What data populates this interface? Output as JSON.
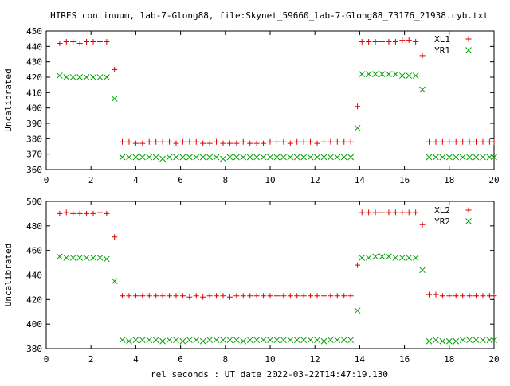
{
  "title": "HIRES continuum, lab-7-Glong88, file:Skynet_59660_lab-7-Glong88_73176_21938.cyb.txt",
  "xlabel": "rel seconds : UT date 2022-03-22T14:47:19.130",
  "chart_data": [
    {
      "type": "scatter",
      "ylabel": "Uncalibrated",
      "xlim": [
        0,
        20
      ],
      "ylim": [
        360,
        450
      ],
      "x_ticks": [
        0,
        2,
        4,
        6,
        8,
        10,
        12,
        14,
        16,
        18,
        20
      ],
      "y_ticks": [
        360,
        370,
        380,
        390,
        400,
        410,
        420,
        430,
        440,
        450
      ],
      "legend_position": "top-right",
      "grid": false,
      "series": [
        {
          "name": "XL1",
          "marker": "plus",
          "color": "#e00000",
          "points": [
            [
              0.6,
              442
            ],
            [
              0.9,
              443
            ],
            [
              1.2,
              443
            ],
            [
              1.5,
              442
            ],
            [
              1.8,
              443
            ],
            [
              2.1,
              443
            ],
            [
              2.4,
              443
            ],
            [
              2.7,
              443
            ],
            [
              3.05,
              425
            ],
            [
              3.4,
              378
            ],
            [
              3.7,
              378
            ],
            [
              4.0,
              377
            ],
            [
              4.3,
              377
            ],
            [
              4.6,
              378
            ],
            [
              4.9,
              378
            ],
            [
              5.2,
              378
            ],
            [
              5.5,
              378
            ],
            [
              5.8,
              377
            ],
            [
              6.1,
              378
            ],
            [
              6.4,
              378
            ],
            [
              6.7,
              378
            ],
            [
              7.0,
              377
            ],
            [
              7.3,
              377
            ],
            [
              7.6,
              378
            ],
            [
              7.9,
              377
            ],
            [
              8.2,
              377
            ],
            [
              8.5,
              377
            ],
            [
              8.8,
              378
            ],
            [
              9.1,
              377
            ],
            [
              9.4,
              377
            ],
            [
              9.7,
              377
            ],
            [
              10.0,
              378
            ],
            [
              10.3,
              378
            ],
            [
              10.6,
              378
            ],
            [
              10.9,
              377
            ],
            [
              11.2,
              378
            ],
            [
              11.5,
              378
            ],
            [
              11.8,
              378
            ],
            [
              12.1,
              377
            ],
            [
              12.4,
              378
            ],
            [
              12.7,
              378
            ],
            [
              13.0,
              378
            ],
            [
              13.3,
              378
            ],
            [
              13.6,
              378
            ],
            [
              13.9,
              401
            ],
            [
              14.1,
              443
            ],
            [
              14.4,
              443
            ],
            [
              14.7,
              443
            ],
            [
              15.0,
              443
            ],
            [
              15.3,
              443
            ],
            [
              15.6,
              443
            ],
            [
              15.9,
              444
            ],
            [
              16.2,
              444
            ],
            [
              16.5,
              443
            ],
            [
              16.8,
              434
            ],
            [
              17.1,
              378
            ],
            [
              17.4,
              378
            ],
            [
              17.7,
              378
            ],
            [
              18.0,
              378
            ],
            [
              18.3,
              378
            ],
            [
              18.6,
              378
            ],
            [
              18.9,
              378
            ],
            [
              19.2,
              378
            ],
            [
              19.5,
              378
            ],
            [
              19.8,
              378
            ],
            [
              20.0,
              378
            ]
          ]
        },
        {
          "name": "YR1",
          "marker": "x",
          "color": "#00a000",
          "points": [
            [
              0.6,
              421
            ],
            [
              0.9,
              420
            ],
            [
              1.2,
              420
            ],
            [
              1.5,
              420
            ],
            [
              1.8,
              420
            ],
            [
              2.1,
              420
            ],
            [
              2.4,
              420
            ],
            [
              2.7,
              420
            ],
            [
              3.05,
              406
            ],
            [
              3.4,
              368
            ],
            [
              3.7,
              368
            ],
            [
              4.0,
              368
            ],
            [
              4.3,
              368
            ],
            [
              4.6,
              368
            ],
            [
              4.9,
              368
            ],
            [
              5.2,
              367
            ],
            [
              5.5,
              368
            ],
            [
              5.8,
              368
            ],
            [
              6.1,
              368
            ],
            [
              6.4,
              368
            ],
            [
              6.7,
              368
            ],
            [
              7.0,
              368
            ],
            [
              7.3,
              368
            ],
            [
              7.6,
              368
            ],
            [
              7.9,
              367
            ],
            [
              8.2,
              368
            ],
            [
              8.5,
              368
            ],
            [
              8.8,
              368
            ],
            [
              9.1,
              368
            ],
            [
              9.4,
              368
            ],
            [
              9.7,
              368
            ],
            [
              10.0,
              368
            ],
            [
              10.3,
              368
            ],
            [
              10.6,
              368
            ],
            [
              10.9,
              368
            ],
            [
              11.2,
              368
            ],
            [
              11.5,
              368
            ],
            [
              11.8,
              368
            ],
            [
              12.1,
              368
            ],
            [
              12.4,
              368
            ],
            [
              12.7,
              368
            ],
            [
              13.0,
              368
            ],
            [
              13.3,
              368
            ],
            [
              13.6,
              368
            ],
            [
              13.9,
              387
            ],
            [
              14.1,
              422
            ],
            [
              14.4,
              422
            ],
            [
              14.7,
              422
            ],
            [
              15.0,
              422
            ],
            [
              15.3,
              422
            ],
            [
              15.6,
              422
            ],
            [
              15.9,
              421
            ],
            [
              16.2,
              421
            ],
            [
              16.5,
              421
            ],
            [
              16.8,
              412
            ],
            [
              17.1,
              368
            ],
            [
              17.4,
              368
            ],
            [
              17.7,
              368
            ],
            [
              18.0,
              368
            ],
            [
              18.3,
              368
            ],
            [
              18.6,
              368
            ],
            [
              18.9,
              368
            ],
            [
              19.2,
              368
            ],
            [
              19.5,
              368
            ],
            [
              19.8,
              368
            ],
            [
              20.0,
              368
            ]
          ]
        }
      ]
    },
    {
      "type": "scatter",
      "ylabel": "Uncalibrated",
      "xlim": [
        0,
        20
      ],
      "ylim": [
        380,
        500
      ],
      "x_ticks": [
        0,
        2,
        4,
        6,
        8,
        10,
        12,
        14,
        16,
        18,
        20
      ],
      "y_ticks": [
        380,
        400,
        420,
        440,
        460,
        480,
        500
      ],
      "legend_position": "top-right",
      "grid": false,
      "series": [
        {
          "name": "XL2",
          "marker": "plus",
          "color": "#e00000",
          "points": [
            [
              0.6,
              490
            ],
            [
              0.9,
              491
            ],
            [
              1.2,
              490
            ],
            [
              1.5,
              490
            ],
            [
              1.8,
              490
            ],
            [
              2.1,
              490
            ],
            [
              2.4,
              491
            ],
            [
              2.7,
              490
            ],
            [
              3.05,
              471
            ],
            [
              3.4,
              423
            ],
            [
              3.7,
              423
            ],
            [
              4.0,
              423
            ],
            [
              4.3,
              423
            ],
            [
              4.6,
              423
            ],
            [
              4.9,
              423
            ],
            [
              5.2,
              423
            ],
            [
              5.5,
              423
            ],
            [
              5.8,
              423
            ],
            [
              6.1,
              423
            ],
            [
              6.4,
              422
            ],
            [
              6.7,
              423
            ],
            [
              7.0,
              422
            ],
            [
              7.3,
              423
            ],
            [
              7.6,
              423
            ],
            [
              7.9,
              423
            ],
            [
              8.2,
              422
            ],
            [
              8.5,
              423
            ],
            [
              8.8,
              423
            ],
            [
              9.1,
              423
            ],
            [
              9.4,
              423
            ],
            [
              9.7,
              423
            ],
            [
              10.0,
              423
            ],
            [
              10.3,
              423
            ],
            [
              10.6,
              423
            ],
            [
              10.9,
              423
            ],
            [
              11.2,
              423
            ],
            [
              11.5,
              423
            ],
            [
              11.8,
              423
            ],
            [
              12.1,
              423
            ],
            [
              12.4,
              423
            ],
            [
              12.7,
              423
            ],
            [
              13.0,
              423
            ],
            [
              13.3,
              423
            ],
            [
              13.6,
              423
            ],
            [
              13.9,
              448
            ],
            [
              14.1,
              491
            ],
            [
              14.4,
              491
            ],
            [
              14.7,
              491
            ],
            [
              15.0,
              491
            ],
            [
              15.3,
              491
            ],
            [
              15.6,
              491
            ],
            [
              15.9,
              491
            ],
            [
              16.2,
              491
            ],
            [
              16.5,
              491
            ],
            [
              16.8,
              481
            ],
            [
              17.1,
              424
            ],
            [
              17.4,
              424
            ],
            [
              17.7,
              423
            ],
            [
              18.0,
              423
            ],
            [
              18.3,
              423
            ],
            [
              18.6,
              423
            ],
            [
              18.9,
              423
            ],
            [
              19.2,
              423
            ],
            [
              19.5,
              423
            ],
            [
              19.8,
              423
            ],
            [
              20.0,
              423
            ]
          ]
        },
        {
          "name": "YR2",
          "marker": "x",
          "color": "#00a000",
          "points": [
            [
              0.6,
              455
            ],
            [
              0.9,
              454
            ],
            [
              1.2,
              454
            ],
            [
              1.5,
              454
            ],
            [
              1.8,
              454
            ],
            [
              2.1,
              454
            ],
            [
              2.4,
              454
            ],
            [
              2.7,
              453
            ],
            [
              3.05,
              435
            ],
            [
              3.4,
              387
            ],
            [
              3.7,
              386
            ],
            [
              4.0,
              387
            ],
            [
              4.3,
              387
            ],
            [
              4.6,
              387
            ],
            [
              4.9,
              387
            ],
            [
              5.2,
              386
            ],
            [
              5.5,
              387
            ],
            [
              5.8,
              387
            ],
            [
              6.1,
              386
            ],
            [
              6.4,
              387
            ],
            [
              6.7,
              387
            ],
            [
              7.0,
              386
            ],
            [
              7.3,
              387
            ],
            [
              7.6,
              387
            ],
            [
              7.9,
              387
            ],
            [
              8.2,
              387
            ],
            [
              8.5,
              387
            ],
            [
              8.8,
              386
            ],
            [
              9.1,
              387
            ],
            [
              9.4,
              387
            ],
            [
              9.7,
              387
            ],
            [
              10.0,
              387
            ],
            [
              10.3,
              387
            ],
            [
              10.6,
              387
            ],
            [
              10.9,
              387
            ],
            [
              11.2,
              387
            ],
            [
              11.5,
              387
            ],
            [
              11.8,
              387
            ],
            [
              12.1,
              387
            ],
            [
              12.4,
              386
            ],
            [
              12.7,
              387
            ],
            [
              13.0,
              387
            ],
            [
              13.3,
              387
            ],
            [
              13.6,
              387
            ],
            [
              13.9,
              411
            ],
            [
              14.1,
              454
            ],
            [
              14.4,
              454
            ],
            [
              14.7,
              455
            ],
            [
              15.0,
              455
            ],
            [
              15.3,
              455
            ],
            [
              15.6,
              454
            ],
            [
              15.9,
              454
            ],
            [
              16.2,
              454
            ],
            [
              16.5,
              454
            ],
            [
              16.8,
              444
            ],
            [
              17.1,
              386
            ],
            [
              17.4,
              387
            ],
            [
              17.7,
              386
            ],
            [
              18.0,
              386
            ],
            [
              18.3,
              386
            ],
            [
              18.6,
              387
            ],
            [
              18.9,
              387
            ],
            [
              19.2,
              387
            ],
            [
              19.5,
              387
            ],
            [
              19.8,
              387
            ],
            [
              20.0,
              387
            ]
          ]
        }
      ]
    }
  ]
}
